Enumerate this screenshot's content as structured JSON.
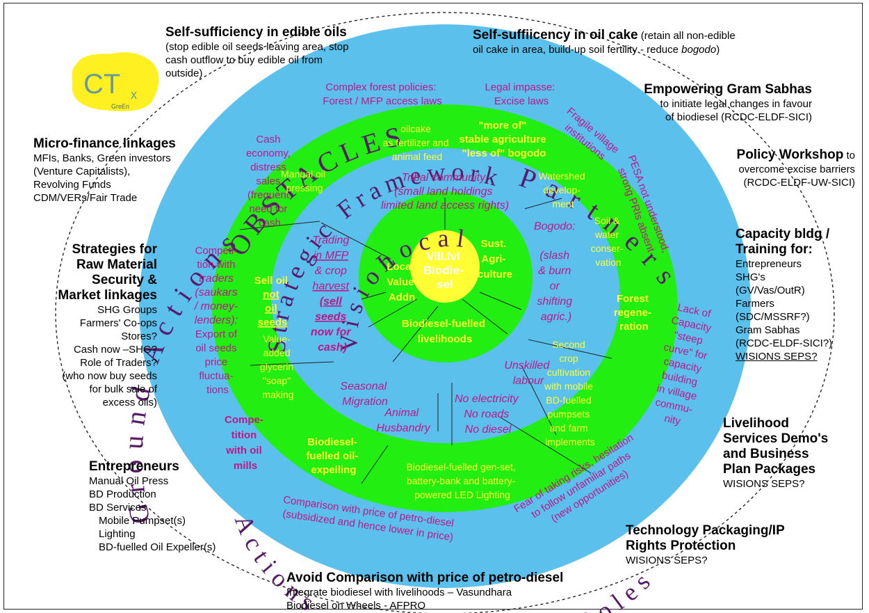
{
  "colors": {
    "outer_ring": "#5bc0eb",
    "green_ring": "#22ee11",
    "center": "#ffff33",
    "magenta_text": "#c0168a",
    "yellow_text": "#ffff33"
  },
  "logo": {
    "main": "CT",
    "sub": "x",
    "tag": "GreEn"
  },
  "left": {
    "edible": {
      "title": "Self-sufficiency in edible oils",
      "lines": [
        "(stop edible oil seeds leaving area, stop",
        "cash outflow to buy edible oil from",
        "outside)"
      ]
    },
    "micro": {
      "title": "Micro-finance linkages",
      "lines": [
        "MFIs, Banks, Green investors",
        "(Venture Capitalists),",
        "Revolving Funds",
        "CDM/VERs/Fair Trade"
      ]
    },
    "strat": {
      "title_lines": [
        "Strategies for",
        "Raw Material",
        "Security &",
        "Market linkages"
      ],
      "lines": [
        "SHG Groups",
        "Farmers' Co-ops",
        "Stores?",
        "Cash now –SHG?",
        "Role of Traders?",
        "(who now buy seeds",
        "for bulk sale of",
        "excess oils)"
      ]
    },
    "entre": {
      "title": "Entrepreneurs",
      "lines": [
        "Manual Oil Press",
        "BD Production",
        "BD Services",
        "Mobile Pumpset(s)",
        "Lighting",
        "BD-fuelled Oil Expeller(s)"
      ]
    }
  },
  "right": {
    "oilcake": {
      "title": "Self-suffiicency in oil cake",
      "title_rest": " (retain all non-edible",
      "line2_a": "oil cake in area, build-up soil fertility - reduce ",
      "line2_b": "bogodo",
      "line2_c": ")"
    },
    "gram": {
      "title": "Empowering Gram Sabhas",
      "lines": [
        "to initiate legal changes in favour",
        "of biodiesel (RCDC-ELDF-SICI)"
      ]
    },
    "policy": {
      "title": "Policy Workshop",
      "title_rest": " to",
      "lines": [
        "overcome excise barriers",
        "(RCDC-ELDF-UW-SICI)"
      ]
    },
    "capacity": {
      "title_lines": [
        "Capacity bldg /",
        "Training for:"
      ],
      "lines": [
        "Entrepreneurs",
        "SHG's",
        "(GV/Vas/OutR)",
        "Farmers",
        "(SDC/MSSRF?)",
        "Gram Sabhas",
        "(RCDC-ELDF-SICI?)"
      ],
      "last": "WISIONS SEPS?"
    },
    "livelihood": {
      "title_lines": [
        "Livelihood",
        "Services Demo's",
        "and Business",
        "Plan Packages"
      ],
      "last": "WISIONS SEPS?"
    },
    "tech": {
      "title_lines": [
        "Technology Packaging/IP",
        "Rights Protection"
      ],
      "last": "WISIONS SEPS?"
    }
  },
  "bottom": {
    "title": "Avoid Comparison with  price of petro-diesel",
    "lines": [
      "Integrate biodiesel with livelihoods – Vasundhara",
      "Biodiesel on Wheels - AFPRO"
    ]
  },
  "ring_words": {
    "ground": "Ground Actions",
    "partners": "Partners",
    "obstacles": "OBSTACLES",
    "strategic": "Strategic Framework",
    "local": "Local",
    "vision": "Vision",
    "roles": "Roles",
    "actions": "Actions"
  },
  "outer_ring_text": {
    "complex": [
      "Complex forest policies:",
      "Forest / MFP access laws"
    ],
    "legal": [
      "Legal impasse:",
      "Excise laws"
    ],
    "fragile": [
      "Fragile village",
      "institutions"
    ],
    "pesa": [
      "PESA not understood,",
      "strong PRIs absent"
    ],
    "cash": [
      "Cash",
      "economy,",
      "distress",
      "sales",
      "(frequent",
      "need for",
      "cash"
    ],
    "competition": [
      "Competi-",
      "tion with",
      "traders",
      "(saukars",
      "/ money-",
      "lenders):",
      "Export of",
      "oil seeds",
      "price",
      "fluctua-",
      "tions"
    ],
    "compete_mills": [
      "Compe-",
      "tition",
      "with oil",
      "mills"
    ],
    "lack": [
      "Lack of",
      "Capacity",
      "\"steep",
      "curve\" for",
      "capacity",
      "building",
      "in village",
      "commu-",
      "nity"
    ],
    "comparison": [
      "Comparison with price of petro-diesel",
      "(subsidized and hence lower in price)"
    ],
    "fear": [
      "Fear of taking risks, hesitation",
      "to follow unfamiliar paths",
      "(new opportunities)"
    ]
  },
  "green_ring_text": {
    "oilcake": [
      "oilcake",
      "as fertilizer and",
      "animal feed"
    ],
    "more": [
      "\"more of\"",
      "stable agriculture",
      "\"less of\" bogodo"
    ],
    "watershed": [
      "Watershed",
      "develop-",
      "ment"
    ],
    "soil": [
      "Soil &",
      "water",
      "conser-",
      "vation"
    ],
    "forest": [
      "Forest",
      "regene-",
      "ration"
    ],
    "manual": [
      "Manual oil",
      "pressing"
    ],
    "sell": [
      "Sell oil",
      "not",
      "oil",
      "seeds"
    ],
    "value": [
      "Value-",
      "added",
      "glycerin",
      "\"soap\"",
      "making"
    ],
    "bdfuel": [
      "Biodiesel-",
      "fuelled oil-",
      "expelling"
    ],
    "genset": [
      "Biodiesel-fuelled gen-set,",
      "battery-bank and battery-",
      "powered LED Lighting"
    ],
    "second": [
      "Second",
      "crop",
      "cultivation",
      "with mobile",
      "BD-fuelled",
      "pumpsets",
      "and farm",
      "implements"
    ]
  },
  "inner_ring_text": {
    "tribal": [
      "Tribal community",
      "(small land holdings",
      "limited land access rights)"
    ],
    "trading": [
      "Trading",
      "in MFP",
      "& crop",
      "harvest",
      "(sell",
      "seeds",
      "now for",
      "cash)"
    ],
    "bogodo": [
      "Bogodo:",
      "(slash",
      "& burn",
      "or",
      "shifting",
      "agric.)"
    ],
    "unskilled": [
      "Unskilled",
      "labour"
    ],
    "seasonal": [
      "Seasonal",
      "Migration"
    ],
    "animal": [
      "Animal",
      "Husbandry"
    ],
    "noelec": [
      "No electricity",
      "No roads",
      "No diesel"
    ]
  },
  "core": {
    "local": [
      "Local",
      "Value",
      "Addn"
    ],
    "sust": [
      "Sust.",
      "Agri-",
      "culture"
    ],
    "bio": [
      "Biodiesel-fuelled",
      "livelihoods"
    ],
    "center": [
      "Vill.lvl",
      "Biodie-",
      "sel"
    ]
  }
}
